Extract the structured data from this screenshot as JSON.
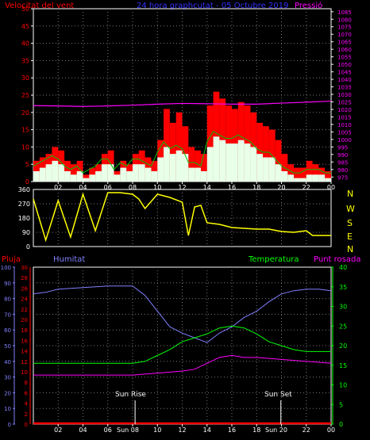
{
  "colors": {
    "background": "#000000",
    "frame": "#ffffff",
    "wind": "#ff0000",
    "wind_avg": "#e8ffe8",
    "wind_green": "#00c000",
    "pressure": "#ff00ff",
    "direction": "#ffff00",
    "rain": "#ff0000",
    "humidity": "#8080ff",
    "temperature": "#00ff00",
    "dewpoint": "#ff00ff"
  },
  "header": {
    "left_label": "Velocitat del vent",
    "center_label": "24 hora graphcutat - 05 Octubre 2019",
    "right_label": "Pressió"
  },
  "compass": {
    "labels": [
      "N",
      "W",
      "S",
      "E",
      "N"
    ]
  },
  "bottom_header": {
    "rain_label": "Pluja",
    "humidity_label": "Humitat",
    "temperature_label": "Temperatura",
    "dewpoint_label": "Punt rosada"
  },
  "sun": {
    "rise_label": "Sun Rise",
    "set_label": "Sun Set",
    "rise_tick_label": "Sun 08",
    "set_tick_label": "Sun 20",
    "rise_hour": 8.2,
    "set_hour": 19.95
  },
  "x_ticks": [
    "02",
    "04",
    "06",
    "08",
    "10",
    "12",
    "14",
    "16",
    "18",
    "20",
    "22",
    "00"
  ],
  "chart_data": [
    {
      "type": "area",
      "name": "wind-and-pressure",
      "x_range_hours": [
        0,
        24
      ],
      "y_left": {
        "label": "Velocitat del vent",
        "range": [
          0,
          50
        ],
        "ticks": [
          0,
          5,
          10,
          15,
          20,
          25,
          30,
          35,
          40,
          45,
          50
        ]
      },
      "y_right": {
        "label": "Pressió",
        "range": [
          972,
          1087
        ],
        "ticks": [
          975,
          980,
          985,
          990,
          995,
          1000,
          1005,
          1010,
          1015,
          1020,
          1025,
          1030,
          1035,
          1040,
          1045,
          1050,
          1055,
          1060,
          1065,
          1070,
          1075,
          1080,
          1085
        ]
      },
      "series": [
        {
          "name": "gust",
          "hours": [
            0,
            0.5,
            1,
            1.5,
            2,
            2.5,
            3,
            3.5,
            4,
            4.5,
            5,
            5.5,
            6,
            6.5,
            7,
            7.5,
            8,
            8.5,
            9,
            9.5,
            10,
            10.5,
            11,
            11.5,
            12,
            12.5,
            13,
            13.5,
            14,
            14.5,
            15,
            15.5,
            16,
            16.5,
            17,
            17.5,
            18,
            18.5,
            19,
            19.5,
            20,
            20.5,
            21,
            21.5,
            22,
            22.5,
            23,
            23.5,
            24
          ],
          "values": [
            6,
            7,
            8,
            10,
            9,
            6,
            5,
            6,
            2,
            4,
            5,
            8,
            9,
            3,
            6,
            5,
            8,
            9,
            7,
            6,
            12,
            21,
            17,
            20,
            16,
            10,
            9,
            8,
            22,
            26,
            24,
            22,
            21,
            23,
            22,
            20,
            17,
            16,
            15,
            12,
            8,
            5,
            4,
            4,
            6,
            5,
            4,
            3,
            2
          ]
        },
        {
          "name": "average",
          "hours": [
            0,
            0.5,
            1,
            1.5,
            2,
            2.5,
            3,
            3.5,
            4,
            4.5,
            5,
            5.5,
            6,
            6.5,
            7,
            7.5,
            8,
            8.5,
            9,
            9.5,
            10,
            10.5,
            11,
            11.5,
            12,
            12.5,
            13,
            13.5,
            14,
            14.5,
            15,
            15.5,
            16,
            16.5,
            17,
            17.5,
            18,
            18.5,
            19,
            19.5,
            20,
            20.5,
            21,
            21.5,
            22,
            22.5,
            23,
            23.5,
            24
          ],
          "values": [
            3,
            4,
            5,
            6,
            5,
            3,
            2,
            3,
            1,
            2,
            3,
            5,
            5,
            2,
            4,
            3,
            5,
            5,
            4,
            3,
            7,
            10,
            8,
            9,
            8,
            4,
            4,
            3,
            10,
            13,
            12,
            11,
            11,
            12,
            11,
            10,
            8,
            7,
            7,
            5,
            3,
            2,
            1,
            1,
            2,
            2,
            2,
            1,
            1
          ]
        },
        {
          "name": "pressure",
          "hours": [
            0,
            2,
            4,
            6,
            8,
            10,
            12,
            14,
            16,
            18,
            20,
            22,
            24
          ],
          "values": [
            1022.5,
            1022.3,
            1022.0,
            1022.3,
            1022.8,
            1023.5,
            1024.0,
            1023.8,
            1023.5,
            1023.5,
            1024.2,
            1024.8,
            1025.5
          ]
        }
      ]
    },
    {
      "type": "scatter",
      "name": "wind-direction",
      "x_range_hours": [
        0,
        24
      ],
      "y_left": {
        "range": [
          0,
          360
        ],
        "ticks": [
          0,
          90,
          180,
          270,
          360
        ]
      },
      "series": [
        {
          "name": "direction",
          "hours": [
            0,
            1,
            2,
            3,
            4,
            5,
            6,
            7,
            8,
            8.5,
            9,
            10,
            11,
            12,
            12.5,
            13,
            13.5,
            14,
            15,
            16,
            17,
            18,
            19,
            20,
            21,
            22,
            22.5,
            23,
            24
          ],
          "values": [
            300,
            40,
            290,
            60,
            330,
            100,
            340,
            340,
            330,
            300,
            240,
            330,
            310,
            280,
            70,
            250,
            260,
            150,
            140,
            120,
            115,
            110,
            110,
            95,
            90,
            100,
            70,
            70,
            70
          ]
        }
      ]
    },
    {
      "type": "line",
      "name": "rain-humidity-temperature-dewpoint",
      "x_range_hours": [
        0,
        24
      ],
      "y_axes": [
        {
          "label": "Humitat",
          "range": [
            0,
            100
          ],
          "ticks": [
            0,
            10,
            20,
            30,
            40,
            50,
            60,
            70,
            80,
            90,
            100
          ]
        },
        {
          "label": "Pluja",
          "range": [
            0,
            30
          ],
          "ticks": [
            0,
            2,
            4,
            6,
            8,
            10,
            12,
            14,
            16,
            18,
            20,
            22,
            24,
            26,
            28,
            30
          ]
        },
        {
          "label": "Temperatura",
          "range": [
            0,
            40
          ],
          "ticks": [
            0,
            5,
            10,
            15,
            20,
            25,
            30,
            35,
            40
          ]
        }
      ],
      "series": [
        {
          "name": "Humitat",
          "hours": [
            0,
            1,
            2,
            4,
            6,
            8,
            9,
            10,
            11,
            12,
            13,
            14,
            15,
            16,
            17,
            18,
            19,
            20,
            21,
            22,
            23,
            24
          ],
          "values": [
            83,
            84,
            86,
            87,
            88,
            88,
            82,
            72,
            62,
            58,
            55,
            52,
            58,
            62,
            68,
            72,
            78,
            83,
            85,
            86,
            86,
            85
          ]
        },
        {
          "name": "Temperatura",
          "hours": [
            0,
            2,
            4,
            6,
            8,
            9,
            10,
            11,
            12,
            13,
            14,
            15,
            16,
            17,
            18,
            19,
            20,
            21,
            22,
            23,
            24
          ],
          "values": [
            15.5,
            15.5,
            15.5,
            15.5,
            15.5,
            16,
            17.5,
            19,
            21,
            22,
            23,
            24.5,
            25,
            24.5,
            23,
            21,
            20,
            19,
            18.5,
            18.5,
            18.5
          ]
        },
        {
          "name": "Punt rosada",
          "hours": [
            0,
            2,
            4,
            6,
            8,
            10,
            12,
            13,
            14,
            15,
            16,
            17,
            18,
            20,
            22,
            24
          ],
          "values": [
            12.5,
            12.5,
            12.5,
            12.5,
            12.5,
            13,
            13.5,
            14,
            15.5,
            17,
            17.5,
            17,
            17,
            16.5,
            16,
            15.5
          ]
        },
        {
          "name": "Pluja",
          "hours": [
            0,
            24
          ],
          "values": [
            0,
            0
          ]
        }
      ]
    }
  ]
}
